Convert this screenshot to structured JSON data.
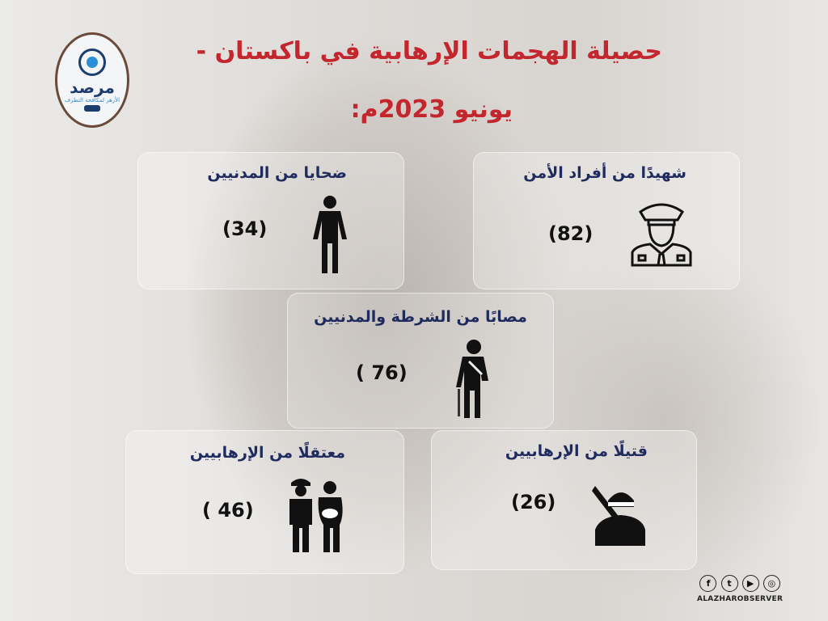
{
  "title": {
    "line1": "حصيلة الهجمات الإرهابية في باكستان -",
    "line2": "يونيو 2023م:"
  },
  "logo": {
    "name": "مرصد",
    "subtitle": "الأزهر لمكافحة التطرف"
  },
  "colors": {
    "title": "#c3262c",
    "labels": "#1f2b5e"
  },
  "stats": [
    {
      "label": "شهيدًا من أفراد الأمن",
      "value": "(82)",
      "icon": "police-officer-icon"
    },
    {
      "label": "ضحايا من المدنيين",
      "value": "(34)",
      "icon": "person-standing-icon"
    },
    {
      "label": "مصابًا من الشرطة والمدنيين",
      "value": "( 76)",
      "icon": "injured-person-icon"
    },
    {
      "label": "قتيلًا من الإرهابيين",
      "value": "(26)",
      "icon": "armed-terrorist-icon"
    },
    {
      "label": "معتقلًا من الإرهابيين",
      "value": "( 46)",
      "icon": "police-arrest-icon"
    }
  ],
  "social": {
    "handle": "ALAZHAROBSERVER",
    "icons": [
      "facebook-icon",
      "twitter-icon",
      "youtube-icon",
      "instagram-icon"
    ]
  }
}
